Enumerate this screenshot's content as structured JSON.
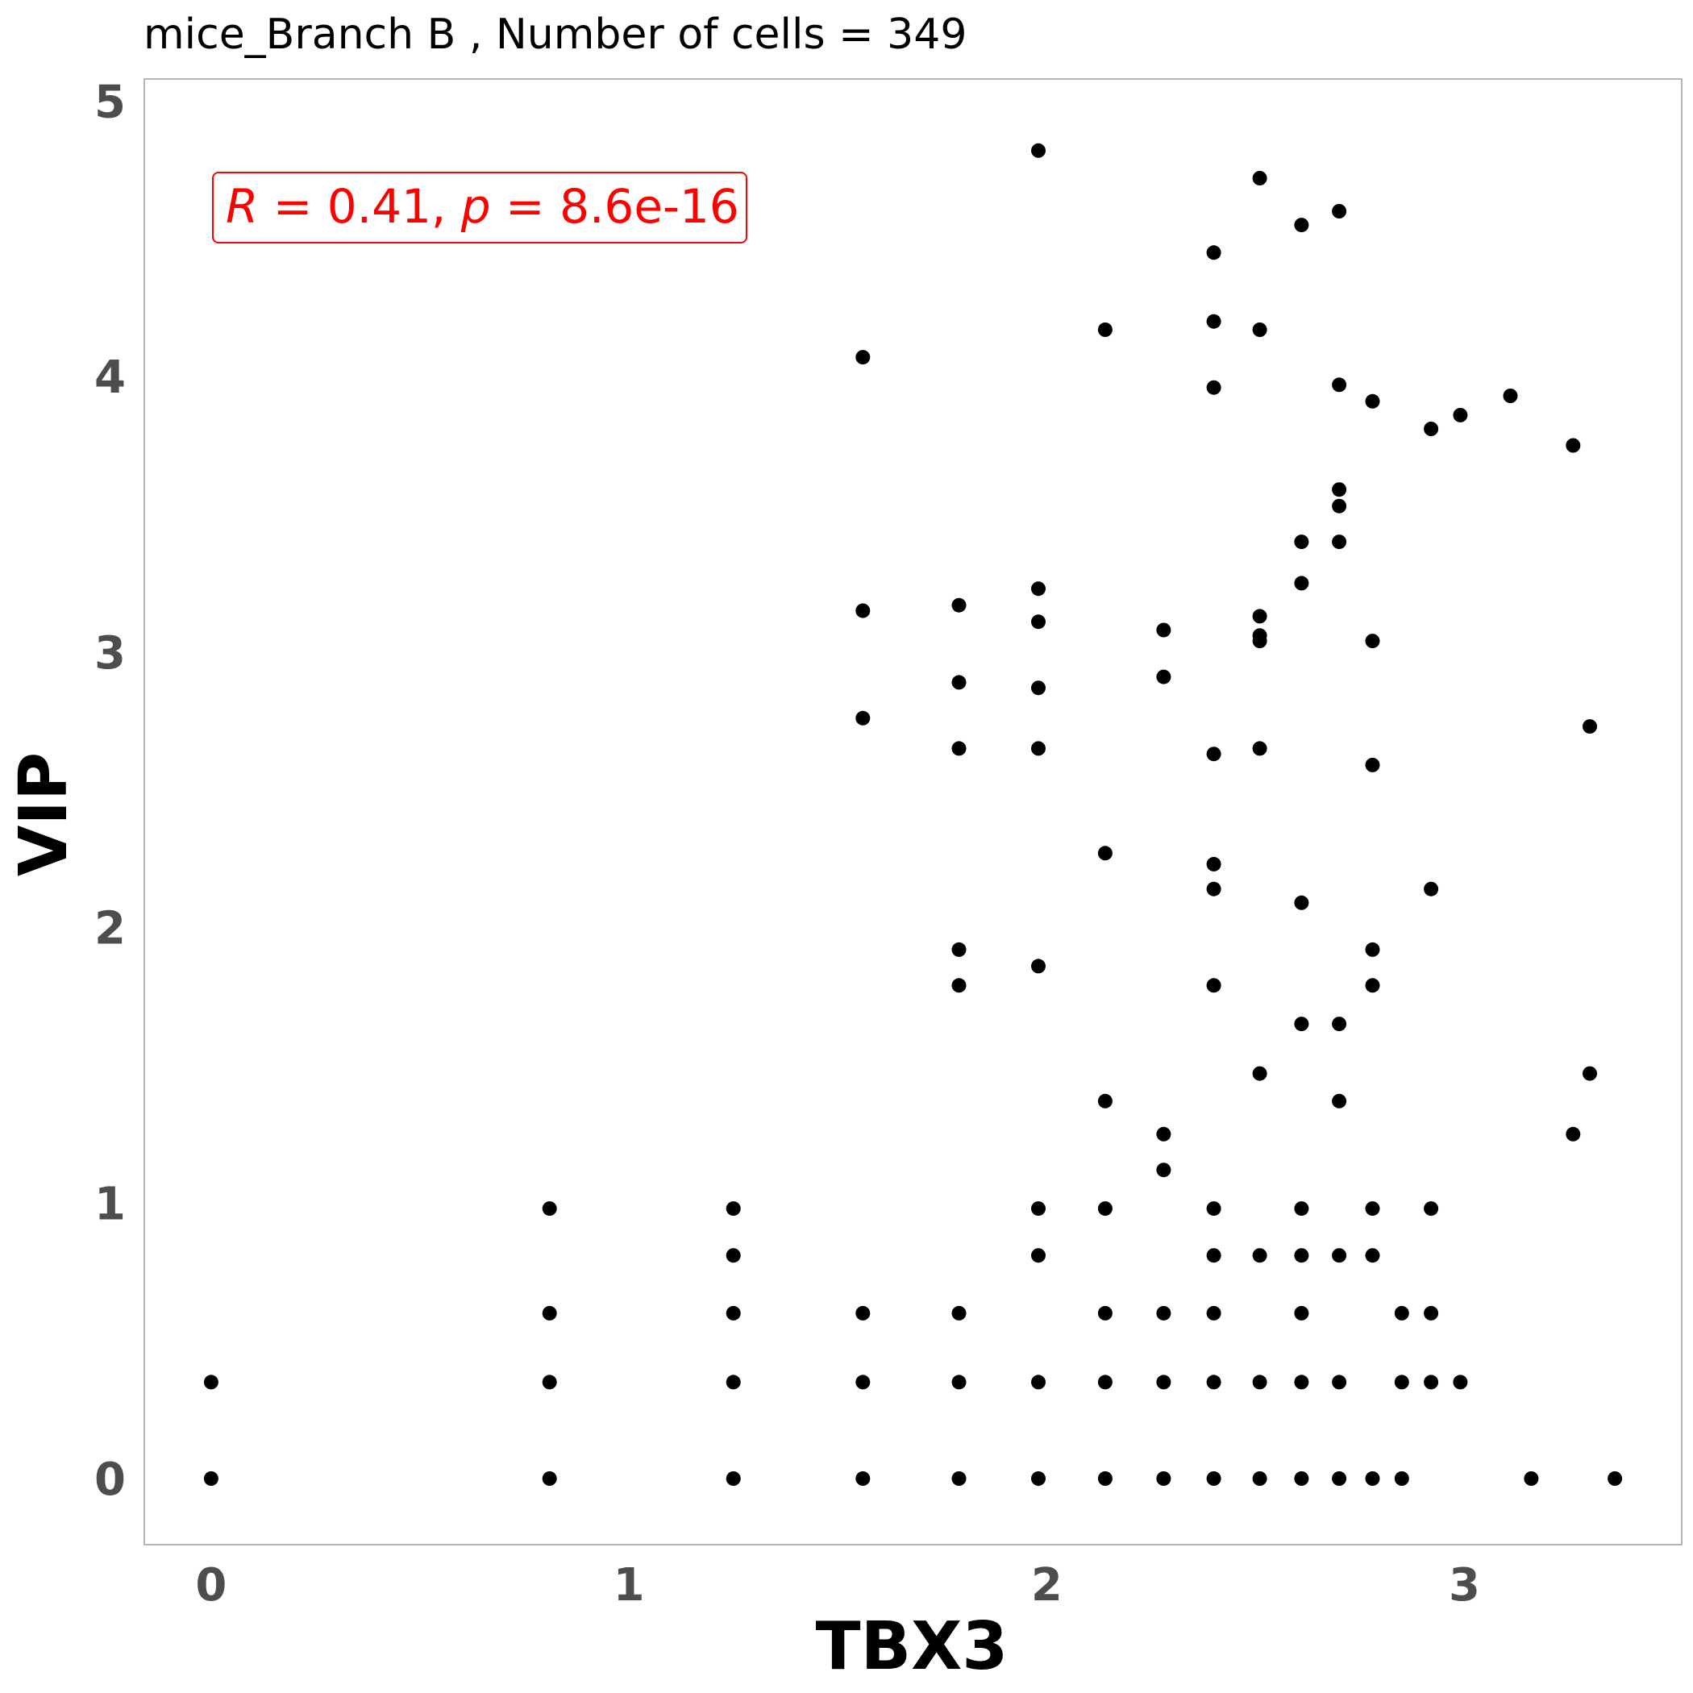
{
  "chart_data": {
    "type": "scatter",
    "title": "mice_Branch B , Number of cells =  349",
    "xlabel": "TBX3",
    "ylabel": "VIP",
    "xlim": [
      -0.16,
      3.52
    ],
    "ylim": [
      -0.24,
      5.08
    ],
    "x_ticks": [
      0,
      1,
      2,
      3
    ],
    "y_ticks": [
      0,
      1,
      2,
      3,
      4,
      5
    ],
    "grid": false,
    "point_color": "#000000",
    "annotation": {
      "r_label": "R",
      "r_text": " = 0.41, ",
      "p_label": "p",
      "p_text": " = 8.6e-16",
      "color": "#ff0000"
    },
    "points": [
      [
        0,
        0
      ],
      [
        0,
        0.35
      ],
      [
        0.81,
        0
      ],
      [
        0.81,
        0.35
      ],
      [
        0.81,
        0.6
      ],
      [
        0.81,
        0.98
      ],
      [
        1.25,
        0
      ],
      [
        1.25,
        0.35
      ],
      [
        1.25,
        0.6
      ],
      [
        1.25,
        0.81
      ],
      [
        1.25,
        0.98
      ],
      [
        1.56,
        0
      ],
      [
        1.56,
        0.35
      ],
      [
        1.56,
        0.6
      ],
      [
        1.56,
        2.76
      ],
      [
        1.56,
        3.15
      ],
      [
        1.56,
        4.07
      ],
      [
        1.79,
        0
      ],
      [
        1.79,
        0.35
      ],
      [
        1.79,
        0.6
      ],
      [
        1.79,
        1.79
      ],
      [
        1.79,
        1.92
      ],
      [
        1.79,
        2.65
      ],
      [
        1.79,
        2.89
      ],
      [
        1.79,
        3.17
      ],
      [
        1.98,
        0
      ],
      [
        1.98,
        0.35
      ],
      [
        1.98,
        0.81
      ],
      [
        1.98,
        0.98
      ],
      [
        1.98,
        1.86
      ],
      [
        1.98,
        2.65
      ],
      [
        1.98,
        2.87
      ],
      [
        1.98,
        3.11
      ],
      [
        1.98,
        3.23
      ],
      [
        1.98,
        4.82
      ],
      [
        2.14,
        0
      ],
      [
        2.14,
        0.35
      ],
      [
        2.14,
        0.6
      ],
      [
        2.14,
        0.98
      ],
      [
        2.14,
        1.37
      ],
      [
        2.14,
        2.27
      ],
      [
        2.14,
        4.17
      ],
      [
        2.28,
        0
      ],
      [
        2.28,
        0.35
      ],
      [
        2.28,
        0.6
      ],
      [
        2.28,
        1.12
      ],
      [
        2.28,
        1.25
      ],
      [
        2.28,
        2.91
      ],
      [
        2.28,
        3.08
      ],
      [
        2.4,
        0
      ],
      [
        2.4,
        0.35
      ],
      [
        2.4,
        0.6
      ],
      [
        2.4,
        0.81
      ],
      [
        2.4,
        0.98
      ],
      [
        2.4,
        1.79
      ],
      [
        2.4,
        2.14
      ],
      [
        2.4,
        2.23
      ],
      [
        2.4,
        2.63
      ],
      [
        2.4,
        3.96
      ],
      [
        2.4,
        4.2
      ],
      [
        2.4,
        4.45
      ],
      [
        2.51,
        0
      ],
      [
        2.51,
        0.35
      ],
      [
        2.51,
        0.81
      ],
      [
        2.51,
        1.47
      ],
      [
        2.51,
        2.65
      ],
      [
        2.51,
        3.04
      ],
      [
        2.51,
        3.06
      ],
      [
        2.51,
        3.13
      ],
      [
        2.51,
        4.17
      ],
      [
        2.51,
        4.72
      ],
      [
        2.61,
        0
      ],
      [
        2.61,
        0.35
      ],
      [
        2.61,
        0.6
      ],
      [
        2.61,
        0.81
      ],
      [
        2.61,
        0.98
      ],
      [
        2.61,
        1.65
      ],
      [
        2.61,
        2.09
      ],
      [
        2.61,
        3.25
      ],
      [
        2.61,
        3.4
      ],
      [
        2.61,
        4.55
      ],
      [
        2.7,
        0
      ],
      [
        2.7,
        0.35
      ],
      [
        2.7,
        0.81
      ],
      [
        2.7,
        1.37
      ],
      [
        2.7,
        1.65
      ],
      [
        2.7,
        3.4
      ],
      [
        2.7,
        3.53
      ],
      [
        2.7,
        3.59
      ],
      [
        2.7,
        3.97
      ],
      [
        2.7,
        4.6
      ],
      [
        2.78,
        0
      ],
      [
        2.78,
        0.81
      ],
      [
        2.78,
        0.98
      ],
      [
        2.78,
        1.79
      ],
      [
        2.78,
        1.92
      ],
      [
        2.78,
        2.59
      ],
      [
        2.78,
        3.04
      ],
      [
        2.78,
        3.91
      ],
      [
        2.85,
        0
      ],
      [
        2.85,
        0.35
      ],
      [
        2.85,
        0.6
      ],
      [
        2.92,
        0.35
      ],
      [
        2.92,
        0.6
      ],
      [
        2.92,
        0.98
      ],
      [
        2.92,
        2.14
      ],
      [
        2.92,
        3.81
      ],
      [
        2.99,
        0.35
      ],
      [
        2.99,
        3.86
      ],
      [
        3.11,
        3.93
      ],
      [
        3.16,
        0
      ],
      [
        3.26,
        1.25
      ],
      [
        3.26,
        3.75
      ],
      [
        3.3,
        1.47
      ],
      [
        3.3,
        2.73
      ],
      [
        3.36,
        0
      ]
    ]
  }
}
